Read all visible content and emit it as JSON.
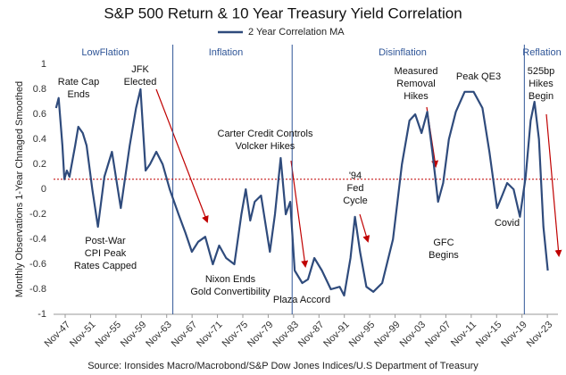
{
  "chart_data": {
    "type": "line",
    "title": "S&P 500 Return & 10 Year Treasury Yield Correlation",
    "y_label": "Monthly Observations  1-Year Chnaged Smoothed",
    "source": "Source: Ironsides Macro/Macrobond/S&P Dow Jones Indices/U.S Department of Treasury",
    "xlim": [
      1946,
      2025.5
    ],
    "ylim": [
      -1,
      1
    ],
    "yticks": [
      1,
      0.8,
      0.6,
      0.4,
      0.2,
      0,
      -0.2,
      -0.4,
      -0.6,
      -0.8,
      -1
    ],
    "xticks": [
      {
        "value": 1947.83,
        "label": "Nov-47"
      },
      {
        "value": 1951.83,
        "label": "Nov-51"
      },
      {
        "value": 1955.83,
        "label": "Nov-55"
      },
      {
        "value": 1959.83,
        "label": "Nov-59"
      },
      {
        "value": 1963.83,
        "label": "Nov-63"
      },
      {
        "value": 1967.83,
        "label": "Nov-67"
      },
      {
        "value": 1971.83,
        "label": "Nov-71"
      },
      {
        "value": 1975.83,
        "label": "Nov-75"
      },
      {
        "value": 1979.83,
        "label": "Nov-79"
      },
      {
        "value": 1983.83,
        "label": "Nov-83"
      },
      {
        "value": 1987.83,
        "label": "Nov-87"
      },
      {
        "value": 1991.83,
        "label": "Nov-91"
      },
      {
        "value": 1995.83,
        "label": "Nov-95"
      },
      {
        "value": 1999.83,
        "label": "Nov-99"
      },
      {
        "value": 2003.83,
        "label": "Nov-03"
      },
      {
        "value": 2007.83,
        "label": "Nov-07"
      },
      {
        "value": 2011.83,
        "label": "Nov-11"
      },
      {
        "value": 2015.83,
        "label": "Nov-15"
      },
      {
        "value": 2019.83,
        "label": "Nov-19"
      },
      {
        "value": 2023.83,
        "label": "Nov-23"
      }
    ],
    "grid": false,
    "legend": "top",
    "reference_line": {
      "value": 0.08,
      "color": "#c00000"
    },
    "era_lines": [
      1964.8,
      1983.6,
      2020.2
    ],
    "eras": [
      "LowFlation",
      "Inflation",
      "Disinflation",
      "Reflation"
    ],
    "annotations": [
      {
        "lines": [
          "Rate Cap",
          "Ends"
        ]
      },
      {
        "lines": [
          "JFK",
          "Elected"
        ]
      },
      {
        "lines": [
          "Post-War",
          "CPI Peak",
          "Rates Capped"
        ]
      },
      {
        "lines": [
          "Nixon Ends",
          "Gold Convertibility"
        ]
      },
      {
        "lines": [
          "Carter Credit Controls",
          "Volcker Hikes"
        ]
      },
      {
        "lines": [
          "Plaza Accord"
        ]
      },
      {
        "lines": [
          "'94",
          "Fed",
          "Cycle"
        ]
      },
      {
        "lines": [
          "Measured",
          "Removal",
          "Hikes"
        ]
      },
      {
        "lines": [
          "Peak QE3"
        ]
      },
      {
        "lines": [
          "GFC",
          "Begins"
        ]
      },
      {
        "lines": [
          "Covid"
        ]
      },
      {
        "lines": [
          "525bp",
          "Hikes",
          "Begin"
        ]
      }
    ],
    "series": [
      {
        "name": "2 Year Correlation MA",
        "color": "#2f4b7c",
        "x": [
          1946.4,
          1946.8,
          1947.4,
          1947.7,
          1948.1,
          1948.5,
          1949.4,
          1949.9,
          1950.6,
          1951.2,
          1952.1,
          1953.0,
          1954.0,
          1955.2,
          1956.6,
          1958.0,
          1959.0,
          1959.7,
          1960.5,
          1961.2,
          1962.2,
          1963.2,
          1964.3,
          1965.7,
          1966.8,
          1967.8,
          1968.8,
          1969.9,
          1971.1,
          1972.1,
          1973.2,
          1974.5,
          1975.6,
          1976.3,
          1977.0,
          1977.7,
          1978.7,
          1980.1,
          1980.9,
          1981.8,
          1982.6,
          1983.3,
          1984.0,
          1985.2,
          1986.1,
          1987.1,
          1988.3,
          1989.7,
          1991.1,
          1991.8,
          1992.8,
          1993.5,
          1994.3,
          1995.3,
          1996.4,
          1997.8,
          1999.5,
          2000.9,
          2002.1,
          2003.0,
          2004.0,
          2004.9,
          2005.7,
          2006.6,
          2007.4,
          2008.3,
          2009.4,
          2010.8,
          2012.2,
          2013.6,
          2014.7,
          2015.9,
          2016.7,
          2017.5,
          2018.5,
          2019.5,
          2020.4,
          2021.2,
          2021.8,
          2022.5,
          2023.2,
          2023.9
        ],
        "values": [
          0.65,
          0.73,
          0.35,
          0.08,
          0.15,
          0.1,
          0.35,
          0.5,
          0.45,
          0.35,
          0.0,
          -0.3,
          0.1,
          0.3,
          -0.15,
          0.35,
          0.65,
          0.8,
          0.15,
          0.2,
          0.3,
          0.2,
          0.0,
          -0.2,
          -0.35,
          -0.5,
          -0.42,
          -0.38,
          -0.6,
          -0.45,
          -0.55,
          -0.6,
          -0.2,
          0.0,
          -0.25,
          -0.1,
          -0.05,
          -0.5,
          -0.2,
          0.25,
          -0.2,
          -0.1,
          -0.65,
          -0.75,
          -0.72,
          -0.55,
          -0.65,
          -0.8,
          -0.78,
          -0.85,
          -0.55,
          -0.22,
          -0.5,
          -0.78,
          -0.82,
          -0.75,
          -0.4,
          0.2,
          0.55,
          0.6,
          0.45,
          0.62,
          0.3,
          -0.1,
          0.05,
          0.4,
          0.62,
          0.78,
          0.78,
          0.65,
          0.3,
          -0.15,
          -0.05,
          0.05,
          0.0,
          -0.22,
          0.1,
          0.55,
          0.7,
          0.4,
          -0.3,
          -0.65
        ]
      }
    ]
  }
}
